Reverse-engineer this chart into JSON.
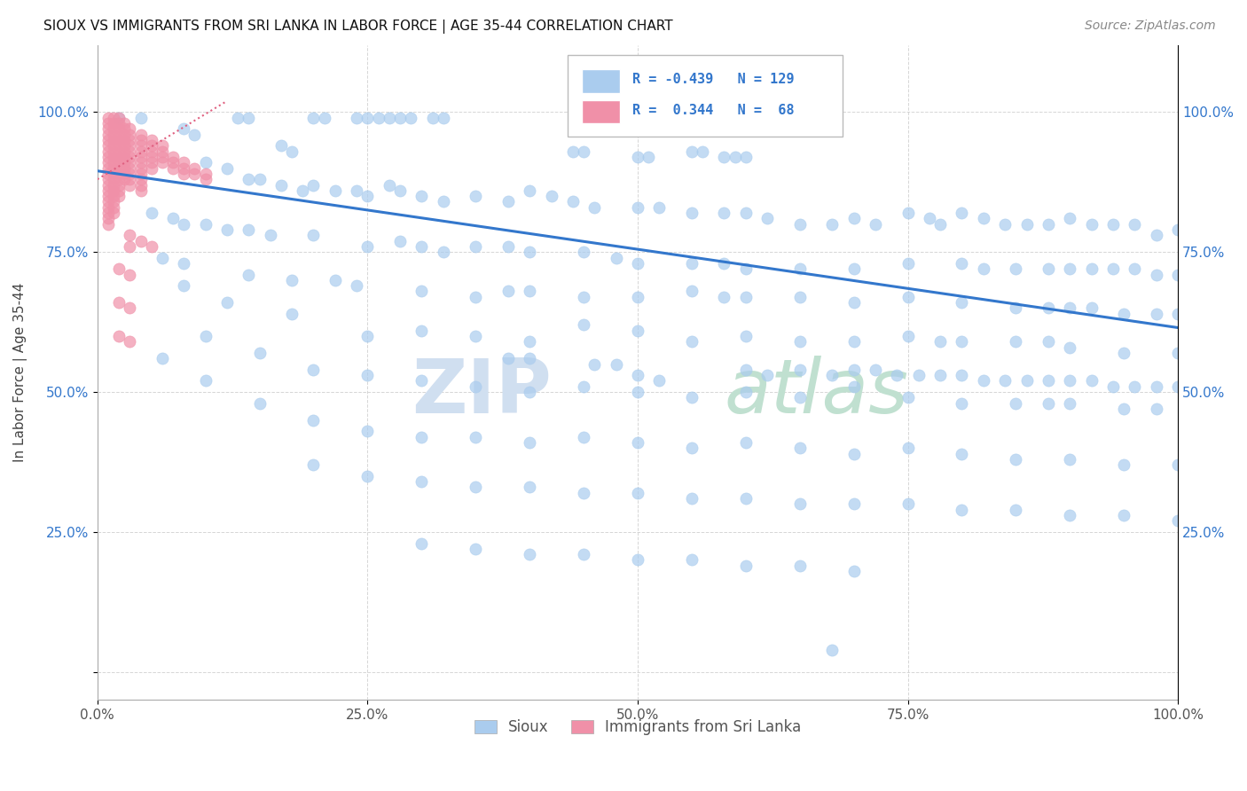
{
  "title": "SIOUX VS IMMIGRANTS FROM SRI LANKA IN LABOR FORCE | AGE 35-44 CORRELATION CHART",
  "source": "Source: ZipAtlas.com",
  "ylabel": "In Labor Force | Age 35-44",
  "xlim": [
    0.0,
    1.0
  ],
  "ylim": [
    -0.05,
    1.12
  ],
  "xticks": [
    0.0,
    0.25,
    0.5,
    0.75,
    1.0
  ],
  "yticks": [
    0.0,
    0.25,
    0.5,
    0.75,
    1.0
  ],
  "xticklabels": [
    "0.0%",
    "25.0%",
    "50.0%",
    "75.0%",
    "100.0%"
  ],
  "yticklabels": [
    "",
    "25.0%",
    "50.0%",
    "75.0%",
    "100.0%"
  ],
  "right_yticklabels": [
    "",
    "25.0%",
    "50.0%",
    "75.0%",
    "100.0%"
  ],
  "legend_labels": [
    "Sioux",
    "Immigrants from Sri Lanka"
  ],
  "blue_color": "#aaccee",
  "pink_color": "#f090a8",
  "blue_line_color": "#3377cc",
  "pink_line_color": "#e06080",
  "pink_line_style": "dotted",
  "R_blue": -0.439,
  "N_blue": 129,
  "R_pink": 0.344,
  "N_pink": 68,
  "watermark_zip": "ZIP",
  "watermark_atlas": "atlas",
  "blue_trend_x0": 0.0,
  "blue_trend_y0": 0.895,
  "blue_trend_x1": 1.0,
  "blue_trend_y1": 0.615,
  "pink_trend_x0": 0.0,
  "pink_trend_y0": 0.88,
  "pink_trend_x1": 0.12,
  "pink_trend_y1": 1.02,
  "blue_scatter": [
    [
      0.02,
      0.99
    ],
    [
      0.04,
      0.99
    ],
    [
      0.13,
      0.99
    ],
    [
      0.14,
      0.99
    ],
    [
      0.2,
      0.99
    ],
    [
      0.21,
      0.99
    ],
    [
      0.24,
      0.99
    ],
    [
      0.25,
      0.99
    ],
    [
      0.26,
      0.99
    ],
    [
      0.27,
      0.99
    ],
    [
      0.28,
      0.99
    ],
    [
      0.29,
      0.99
    ],
    [
      0.31,
      0.99
    ],
    [
      0.32,
      0.99
    ],
    [
      0.08,
      0.97
    ],
    [
      0.09,
      0.96
    ],
    [
      0.17,
      0.94
    ],
    [
      0.18,
      0.93
    ],
    [
      0.44,
      0.93
    ],
    [
      0.45,
      0.93
    ],
    [
      0.5,
      0.92
    ],
    [
      0.51,
      0.92
    ],
    [
      0.55,
      0.93
    ],
    [
      0.56,
      0.93
    ],
    [
      0.58,
      0.92
    ],
    [
      0.59,
      0.92
    ],
    [
      0.6,
      0.92
    ],
    [
      0.66,
      0.99
    ],
    [
      0.1,
      0.91
    ],
    [
      0.12,
      0.9
    ],
    [
      0.14,
      0.88
    ],
    [
      0.15,
      0.88
    ],
    [
      0.17,
      0.87
    ],
    [
      0.19,
      0.86
    ],
    [
      0.2,
      0.87
    ],
    [
      0.22,
      0.86
    ],
    [
      0.24,
      0.86
    ],
    [
      0.25,
      0.85
    ],
    [
      0.27,
      0.87
    ],
    [
      0.28,
      0.86
    ],
    [
      0.3,
      0.85
    ],
    [
      0.32,
      0.84
    ],
    [
      0.35,
      0.85
    ],
    [
      0.38,
      0.84
    ],
    [
      0.4,
      0.86
    ],
    [
      0.42,
      0.85
    ],
    [
      0.44,
      0.84
    ],
    [
      0.46,
      0.83
    ],
    [
      0.5,
      0.83
    ],
    [
      0.52,
      0.83
    ],
    [
      0.55,
      0.82
    ],
    [
      0.58,
      0.82
    ],
    [
      0.6,
      0.82
    ],
    [
      0.62,
      0.81
    ],
    [
      0.65,
      0.8
    ],
    [
      0.68,
      0.8
    ],
    [
      0.7,
      0.81
    ],
    [
      0.72,
      0.8
    ],
    [
      0.75,
      0.82
    ],
    [
      0.77,
      0.81
    ],
    [
      0.78,
      0.8
    ],
    [
      0.8,
      0.82
    ],
    [
      0.82,
      0.81
    ],
    [
      0.84,
      0.8
    ],
    [
      0.86,
      0.8
    ],
    [
      0.88,
      0.8
    ],
    [
      0.9,
      0.81
    ],
    [
      0.92,
      0.8
    ],
    [
      0.94,
      0.8
    ],
    [
      0.96,
      0.8
    ],
    [
      0.98,
      0.78
    ],
    [
      1.0,
      0.79
    ],
    [
      0.05,
      0.82
    ],
    [
      0.07,
      0.81
    ],
    [
      0.08,
      0.8
    ],
    [
      0.1,
      0.8
    ],
    [
      0.12,
      0.79
    ],
    [
      0.14,
      0.79
    ],
    [
      0.16,
      0.78
    ],
    [
      0.2,
      0.78
    ],
    [
      0.25,
      0.76
    ],
    [
      0.28,
      0.77
    ],
    [
      0.3,
      0.76
    ],
    [
      0.32,
      0.75
    ],
    [
      0.35,
      0.76
    ],
    [
      0.38,
      0.76
    ],
    [
      0.4,
      0.75
    ],
    [
      0.45,
      0.75
    ],
    [
      0.48,
      0.74
    ],
    [
      0.5,
      0.73
    ],
    [
      0.55,
      0.73
    ],
    [
      0.58,
      0.73
    ],
    [
      0.6,
      0.72
    ],
    [
      0.65,
      0.72
    ],
    [
      0.7,
      0.72
    ],
    [
      0.75,
      0.73
    ],
    [
      0.8,
      0.73
    ],
    [
      0.82,
      0.72
    ],
    [
      0.85,
      0.72
    ],
    [
      0.88,
      0.72
    ],
    [
      0.9,
      0.72
    ],
    [
      0.92,
      0.72
    ],
    [
      0.94,
      0.72
    ],
    [
      0.96,
      0.72
    ],
    [
      0.98,
      0.71
    ],
    [
      1.0,
      0.71
    ],
    [
      0.06,
      0.74
    ],
    [
      0.08,
      0.73
    ],
    [
      0.14,
      0.71
    ],
    [
      0.18,
      0.7
    ],
    [
      0.22,
      0.7
    ],
    [
      0.24,
      0.69
    ],
    [
      0.3,
      0.68
    ],
    [
      0.35,
      0.67
    ],
    [
      0.38,
      0.68
    ],
    [
      0.4,
      0.68
    ],
    [
      0.45,
      0.67
    ],
    [
      0.5,
      0.67
    ],
    [
      0.55,
      0.68
    ],
    [
      0.58,
      0.67
    ],
    [
      0.6,
      0.67
    ],
    [
      0.65,
      0.67
    ],
    [
      0.7,
      0.66
    ],
    [
      0.75,
      0.67
    ],
    [
      0.8,
      0.66
    ],
    [
      0.85,
      0.65
    ],
    [
      0.88,
      0.65
    ],
    [
      0.9,
      0.65
    ],
    [
      0.92,
      0.65
    ],
    [
      0.95,
      0.64
    ],
    [
      0.98,
      0.64
    ],
    [
      1.0,
      0.64
    ],
    [
      0.08,
      0.69
    ],
    [
      0.12,
      0.66
    ],
    [
      0.18,
      0.64
    ],
    [
      0.25,
      0.6
    ],
    [
      0.3,
      0.61
    ],
    [
      0.35,
      0.6
    ],
    [
      0.4,
      0.59
    ],
    [
      0.45,
      0.62
    ],
    [
      0.5,
      0.61
    ],
    [
      0.55,
      0.59
    ],
    [
      0.6,
      0.6
    ],
    [
      0.65,
      0.59
    ],
    [
      0.7,
      0.59
    ],
    [
      0.75,
      0.6
    ],
    [
      0.78,
      0.59
    ],
    [
      0.8,
      0.59
    ],
    [
      0.85,
      0.59
    ],
    [
      0.88,
      0.59
    ],
    [
      0.9,
      0.58
    ],
    [
      0.95,
      0.57
    ],
    [
      1.0,
      0.57
    ],
    [
      0.1,
      0.6
    ],
    [
      0.15,
      0.57
    ],
    [
      0.2,
      0.54
    ],
    [
      0.25,
      0.53
    ],
    [
      0.3,
      0.52
    ],
    [
      0.35,
      0.51
    ],
    [
      0.4,
      0.5
    ],
    [
      0.45,
      0.51
    ],
    [
      0.5,
      0.5
    ],
    [
      0.55,
      0.49
    ],
    [
      0.6,
      0.5
    ],
    [
      0.65,
      0.49
    ],
    [
      0.7,
      0.51
    ],
    [
      0.75,
      0.49
    ],
    [
      0.8,
      0.48
    ],
    [
      0.85,
      0.48
    ],
    [
      0.88,
      0.48
    ],
    [
      0.9,
      0.48
    ],
    [
      0.95,
      0.47
    ],
    [
      0.98,
      0.47
    ],
    [
      0.06,
      0.56
    ],
    [
      0.1,
      0.52
    ],
    [
      0.15,
      0.48
    ],
    [
      0.2,
      0.45
    ],
    [
      0.25,
      0.43
    ],
    [
      0.3,
      0.42
    ],
    [
      0.35,
      0.42
    ],
    [
      0.4,
      0.41
    ],
    [
      0.45,
      0.42
    ],
    [
      0.5,
      0.41
    ],
    [
      0.55,
      0.4
    ],
    [
      0.6,
      0.41
    ],
    [
      0.65,
      0.4
    ],
    [
      0.7,
      0.39
    ],
    [
      0.75,
      0.4
    ],
    [
      0.8,
      0.39
    ],
    [
      0.85,
      0.38
    ],
    [
      0.9,
      0.38
    ],
    [
      0.95,
      0.37
    ],
    [
      1.0,
      0.37
    ],
    [
      0.5,
      0.53
    ],
    [
      0.52,
      0.52
    ],
    [
      0.48,
      0.55
    ],
    [
      0.46,
      0.55
    ],
    [
      0.4,
      0.56
    ],
    [
      0.38,
      0.56
    ],
    [
      0.6,
      0.54
    ],
    [
      0.62,
      0.53
    ],
    [
      0.65,
      0.54
    ],
    [
      0.68,
      0.53
    ],
    [
      0.7,
      0.54
    ],
    [
      0.72,
      0.54
    ],
    [
      0.74,
      0.53
    ],
    [
      0.76,
      0.53
    ],
    [
      0.78,
      0.53
    ],
    [
      0.8,
      0.53
    ],
    [
      0.82,
      0.52
    ],
    [
      0.84,
      0.52
    ],
    [
      0.86,
      0.52
    ],
    [
      0.88,
      0.52
    ],
    [
      0.9,
      0.52
    ],
    [
      0.92,
      0.52
    ],
    [
      0.94,
      0.51
    ],
    [
      0.96,
      0.51
    ],
    [
      0.98,
      0.51
    ],
    [
      1.0,
      0.51
    ],
    [
      0.2,
      0.37
    ],
    [
      0.25,
      0.35
    ],
    [
      0.3,
      0.34
    ],
    [
      0.35,
      0.33
    ],
    [
      0.4,
      0.33
    ],
    [
      0.45,
      0.32
    ],
    [
      0.5,
      0.32
    ],
    [
      0.55,
      0.31
    ],
    [
      0.6,
      0.31
    ],
    [
      0.65,
      0.3
    ],
    [
      0.7,
      0.3
    ],
    [
      0.75,
      0.3
    ],
    [
      0.8,
      0.29
    ],
    [
      0.85,
      0.29
    ],
    [
      0.9,
      0.28
    ],
    [
      0.95,
      0.28
    ],
    [
      1.0,
      0.27
    ],
    [
      0.3,
      0.23
    ],
    [
      0.35,
      0.22
    ],
    [
      0.4,
      0.21
    ],
    [
      0.45,
      0.21
    ],
    [
      0.5,
      0.2
    ],
    [
      0.55,
      0.2
    ],
    [
      0.6,
      0.19
    ],
    [
      0.65,
      0.19
    ],
    [
      0.7,
      0.18
    ],
    [
      0.68,
      0.04
    ]
  ],
  "pink_scatter": [
    [
      0.01,
      0.99
    ],
    [
      0.01,
      0.98
    ],
    [
      0.01,
      0.97
    ],
    [
      0.01,
      0.96
    ],
    [
      0.01,
      0.95
    ],
    [
      0.01,
      0.94
    ],
    [
      0.01,
      0.93
    ],
    [
      0.01,
      0.92
    ],
    [
      0.01,
      0.91
    ],
    [
      0.01,
      0.9
    ],
    [
      0.01,
      0.89
    ],
    [
      0.01,
      0.88
    ],
    [
      0.01,
      0.87
    ],
    [
      0.01,
      0.86
    ],
    [
      0.01,
      0.85
    ],
    [
      0.01,
      0.84
    ],
    [
      0.01,
      0.83
    ],
    [
      0.01,
      0.82
    ],
    [
      0.01,
      0.81
    ],
    [
      0.01,
      0.8
    ],
    [
      0.015,
      0.99
    ],
    [
      0.015,
      0.98
    ],
    [
      0.015,
      0.97
    ],
    [
      0.015,
      0.96
    ],
    [
      0.015,
      0.95
    ],
    [
      0.015,
      0.94
    ],
    [
      0.015,
      0.93
    ],
    [
      0.015,
      0.92
    ],
    [
      0.015,
      0.91
    ],
    [
      0.015,
      0.9
    ],
    [
      0.015,
      0.89
    ],
    [
      0.015,
      0.88
    ],
    [
      0.015,
      0.87
    ],
    [
      0.015,
      0.86
    ],
    [
      0.015,
      0.85
    ],
    [
      0.015,
      0.84
    ],
    [
      0.015,
      0.83
    ],
    [
      0.015,
      0.82
    ],
    [
      0.02,
      0.99
    ],
    [
      0.02,
      0.98
    ],
    [
      0.02,
      0.97
    ],
    [
      0.02,
      0.96
    ],
    [
      0.02,
      0.95
    ],
    [
      0.02,
      0.94
    ],
    [
      0.02,
      0.93
    ],
    [
      0.02,
      0.92
    ],
    [
      0.02,
      0.91
    ],
    [
      0.02,
      0.9
    ],
    [
      0.02,
      0.89
    ],
    [
      0.02,
      0.88
    ],
    [
      0.02,
      0.87
    ],
    [
      0.02,
      0.86
    ],
    [
      0.02,
      0.85
    ],
    [
      0.025,
      0.98
    ],
    [
      0.025,
      0.97
    ],
    [
      0.025,
      0.96
    ],
    [
      0.025,
      0.95
    ],
    [
      0.025,
      0.94
    ],
    [
      0.025,
      0.93
    ],
    [
      0.025,
      0.92
    ],
    [
      0.025,
      0.91
    ],
    [
      0.025,
      0.9
    ],
    [
      0.025,
      0.89
    ],
    [
      0.025,
      0.88
    ],
    [
      0.03,
      0.97
    ],
    [
      0.03,
      0.96
    ],
    [
      0.03,
      0.95
    ],
    [
      0.03,
      0.94
    ],
    [
      0.03,
      0.93
    ],
    [
      0.03,
      0.92
    ],
    [
      0.03,
      0.91
    ],
    [
      0.03,
      0.9
    ],
    [
      0.03,
      0.89
    ],
    [
      0.03,
      0.88
    ],
    [
      0.03,
      0.87
    ],
    [
      0.04,
      0.96
    ],
    [
      0.04,
      0.95
    ],
    [
      0.04,
      0.94
    ],
    [
      0.04,
      0.93
    ],
    [
      0.04,
      0.92
    ],
    [
      0.04,
      0.91
    ],
    [
      0.04,
      0.9
    ],
    [
      0.04,
      0.89
    ],
    [
      0.04,
      0.88
    ],
    [
      0.04,
      0.87
    ],
    [
      0.04,
      0.86
    ],
    [
      0.05,
      0.95
    ],
    [
      0.05,
      0.94
    ],
    [
      0.05,
      0.93
    ],
    [
      0.05,
      0.92
    ],
    [
      0.05,
      0.91
    ],
    [
      0.05,
      0.9
    ],
    [
      0.06,
      0.94
    ],
    [
      0.06,
      0.93
    ],
    [
      0.06,
      0.92
    ],
    [
      0.06,
      0.91
    ],
    [
      0.07,
      0.92
    ],
    [
      0.07,
      0.91
    ],
    [
      0.07,
      0.9
    ],
    [
      0.08,
      0.91
    ],
    [
      0.08,
      0.9
    ],
    [
      0.08,
      0.89
    ],
    [
      0.09,
      0.9
    ],
    [
      0.09,
      0.89
    ],
    [
      0.1,
      0.89
    ],
    [
      0.1,
      0.88
    ],
    [
      0.03,
      0.78
    ],
    [
      0.04,
      0.77
    ],
    [
      0.05,
      0.76
    ],
    [
      0.03,
      0.76
    ],
    [
      0.02,
      0.72
    ],
    [
      0.03,
      0.71
    ],
    [
      0.02,
      0.66
    ],
    [
      0.03,
      0.65
    ],
    [
      0.02,
      0.6
    ],
    [
      0.03,
      0.59
    ]
  ]
}
